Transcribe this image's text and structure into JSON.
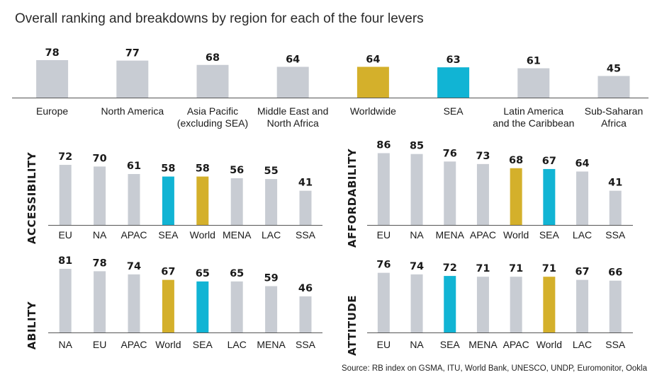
{
  "title": "Overall ranking and breakdowns by region for each of the four levers",
  "source": "Source: RB index on GSMA, ITU, World Bank, UNESCO, UNDP, Euromonitor, Ookla",
  "colors": {
    "default": "#c8ccd3",
    "world": "#d4b02b",
    "sea": "#11b4d4",
    "axis": "#555555"
  },
  "chart_data": [
    {
      "id": "overall",
      "type": "bar",
      "title": "Overall",
      "categories": [
        [
          "Europe"
        ],
        [
          "North America"
        ],
        [
          "Asia Pacific",
          "(excluding SEA)"
        ],
        [
          "Middle East and",
          "North Africa"
        ],
        [
          "Worldwide"
        ],
        [
          "SEA"
        ],
        [
          "Latin America",
          "and the Caribbean"
        ],
        [
          "Sub-Saharan",
          "Africa"
        ]
      ],
      "values": [
        78,
        77,
        68,
        64,
        64,
        63,
        61,
        45
      ],
      "highlight": [
        "",
        "",
        "",
        "",
        "world",
        "sea",
        "",
        ""
      ]
    },
    {
      "id": "accessibility",
      "type": "bar",
      "title": "ACCESSIBILITY",
      "categories": [
        "EU",
        "NA",
        "APAC",
        "SEA",
        "World",
        "MENA",
        "LAC",
        "SSA"
      ],
      "values": [
        72,
        70,
        61,
        58,
        58,
        56,
        55,
        41
      ],
      "highlight": [
        "",
        "",
        "",
        "sea",
        "world",
        "",
        "",
        ""
      ]
    },
    {
      "id": "affordability",
      "type": "bar",
      "title": "AFFORDABILITY",
      "categories": [
        "EU",
        "NA",
        "MENA",
        "APAC",
        "World",
        "SEA",
        "LAC",
        "SSA"
      ],
      "values": [
        86,
        85,
        76,
        73,
        68,
        67,
        64,
        41
      ],
      "highlight": [
        "",
        "",
        "",
        "",
        "world",
        "sea",
        "",
        ""
      ]
    },
    {
      "id": "ability",
      "type": "bar",
      "title": "ABILITY",
      "categories": [
        "NA",
        "EU",
        "APAC",
        "World",
        "SEA",
        "LAC",
        "MENA",
        "SSA"
      ],
      "values": [
        81,
        78,
        74,
        67,
        65,
        65,
        59,
        46
      ],
      "highlight": [
        "",
        "",
        "",
        "world",
        "sea",
        "",
        "",
        ""
      ]
    },
    {
      "id": "attitude",
      "type": "bar",
      "title": "ATTITUDE",
      "categories": [
        "EU",
        "NA",
        "SEA",
        "MENA",
        "APAC",
        "World",
        "LAC",
        "SSA"
      ],
      "values": [
        76,
        74,
        72,
        71,
        71,
        71,
        67,
        66
      ],
      "highlight": [
        "",
        "",
        "sea",
        "",
        "",
        "world",
        "",
        ""
      ]
    }
  ]
}
